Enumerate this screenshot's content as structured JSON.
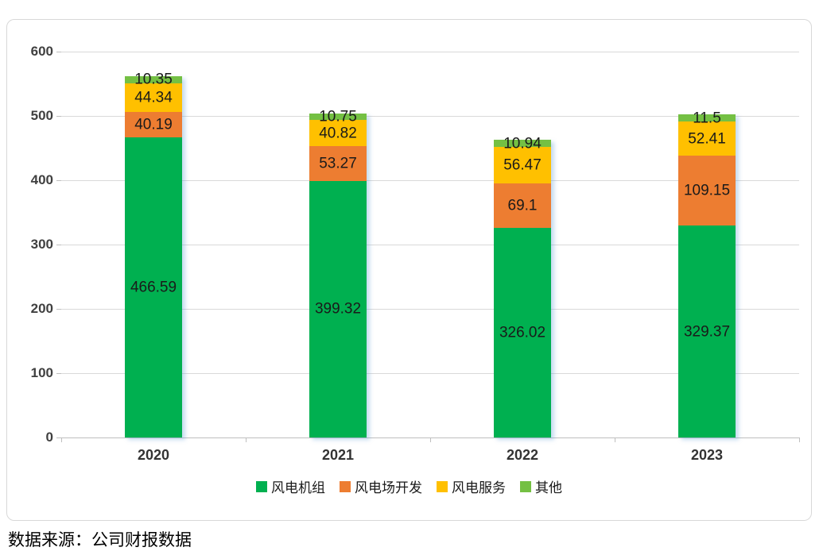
{
  "source": "数据来源：公司财报数据",
  "chart_data": {
    "type": "bar",
    "stacked": true,
    "title": "",
    "xlabel": "",
    "ylabel": "",
    "categories": [
      "2020",
      "2021",
      "2022",
      "2023"
    ],
    "series": [
      {
        "name": "风电机组",
        "color": "#00B050",
        "values": [
          466.59,
          399.32,
          326.02,
          329.37
        ]
      },
      {
        "name": "风电场开发",
        "color": "#ED7D31",
        "values": [
          40.19,
          53.27,
          69.1,
          109.15
        ]
      },
      {
        "name": "风电服务",
        "color": "#FFC000",
        "values": [
          44.34,
          40.82,
          56.47,
          52.41
        ]
      },
      {
        "name": "其他",
        "color": "#74C043",
        "values": [
          10.35,
          10.75,
          10.94,
          11.5
        ]
      }
    ],
    "ylim": [
      0,
      600
    ],
    "yticks": [
      0,
      100,
      200,
      300,
      400,
      500,
      600
    ],
    "grid": true,
    "legend_position": "bottom"
  }
}
